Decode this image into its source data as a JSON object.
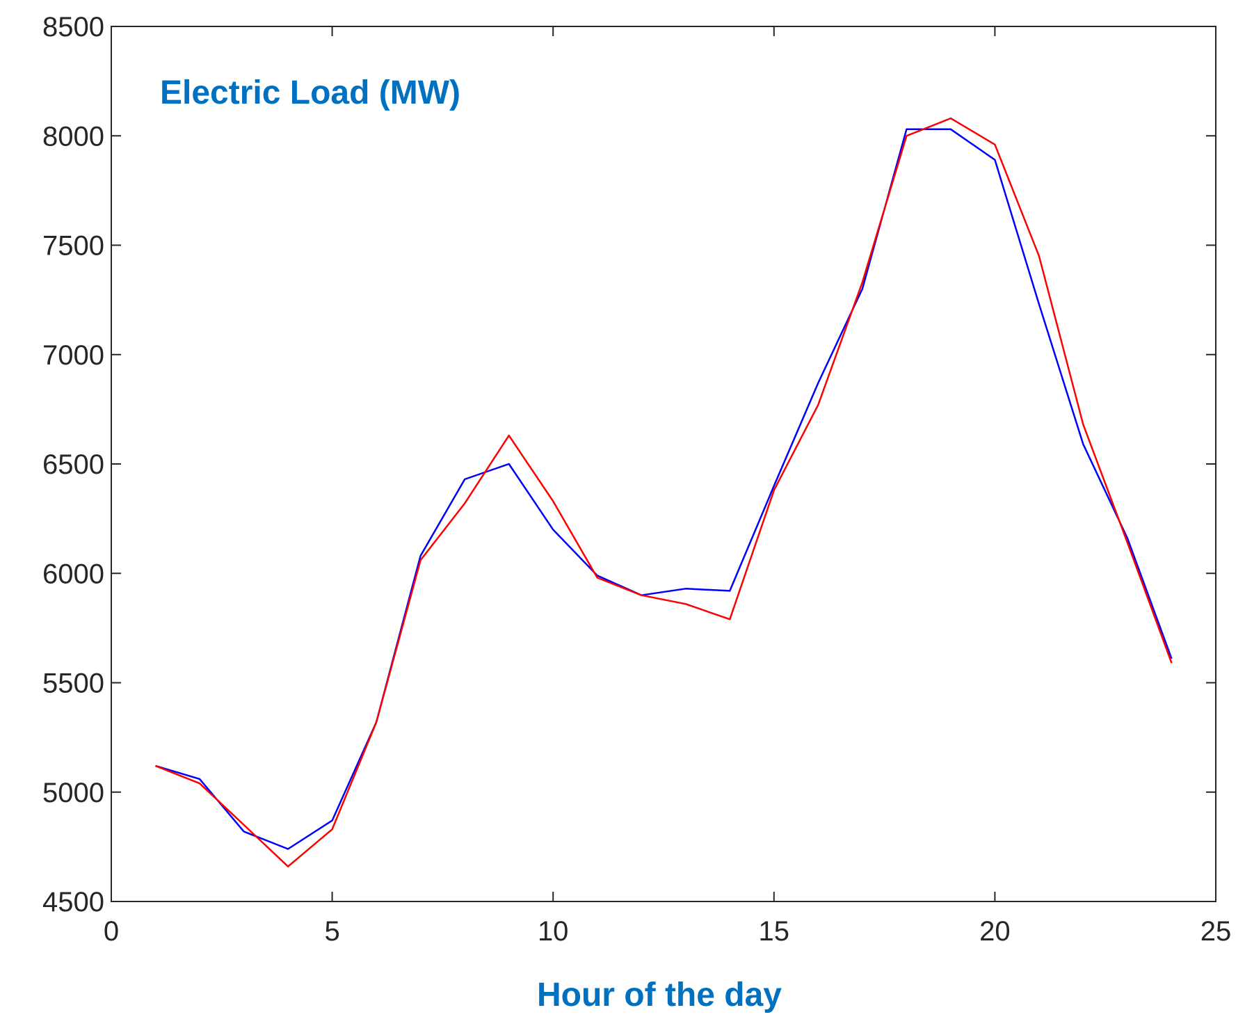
{
  "chart_data": {
    "type": "line",
    "title": "Electric Load (MW)",
    "xlabel": "Hour of the day",
    "ylabel": "",
    "xlim": [
      0,
      25
    ],
    "ylim": [
      4500,
      8500
    ],
    "xticks": [
      0,
      5,
      10,
      15,
      20,
      25
    ],
    "yticks": [
      4500,
      5000,
      5500,
      6000,
      6500,
      7000,
      7500,
      8000,
      8500
    ],
    "grid": false,
    "x": [
      1,
      2,
      3,
      4,
      5,
      6,
      7,
      8,
      9,
      10,
      11,
      12,
      13,
      14,
      15,
      16,
      17,
      18,
      19,
      20,
      21,
      22,
      23,
      24
    ],
    "series": [
      {
        "color": "#0000ff",
        "values": [
          5120,
          5060,
          4820,
          4740,
          4870,
          5320,
          6080,
          6430,
          6500,
          6200,
          5990,
          5900,
          5930,
          5920,
          6400,
          6870,
          7300,
          8030,
          8030,
          7890,
          7230,
          6590,
          6160,
          5610
        ]
      },
      {
        "color": "#ff0000",
        "values": [
          5120,
          5040,
          4850,
          4660,
          4830,
          5320,
          6060,
          6320,
          6630,
          6330,
          5980,
          5900,
          5860,
          5790,
          6380,
          6770,
          7330,
          8000,
          8080,
          7960,
          7450,
          6680,
          6140,
          5590
        ]
      }
    ],
    "colors": {
      "title": "#0070c0",
      "xlabel": "#0070c0",
      "axes": "#262626"
    }
  }
}
